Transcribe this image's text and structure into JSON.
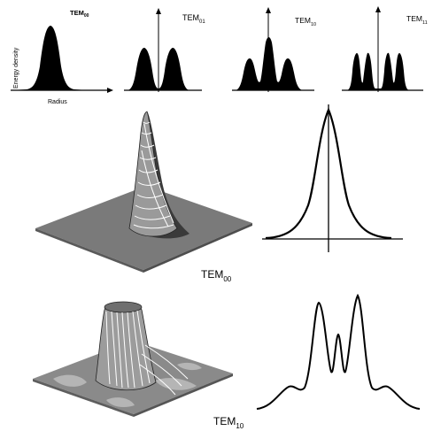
{
  "top_row": {
    "ylabel": "Energy density",
    "xlabel": "Radius",
    "panels": [
      {
        "mode": "TEM",
        "sub": "00"
      },
      {
        "mode": "TEM",
        "sub": "01"
      },
      {
        "mode": "TEM",
        "sub": "10"
      },
      {
        "mode": "TEM",
        "sub": "11"
      }
    ]
  },
  "middle": {
    "mode": "TEM",
    "sub": "00"
  },
  "bottom": {
    "mode": "TEM",
    "sub": "10"
  },
  "colors": {
    "ink": "#000000",
    "plate": "#7a7a7a",
    "surface": "#9c9c9c"
  }
}
